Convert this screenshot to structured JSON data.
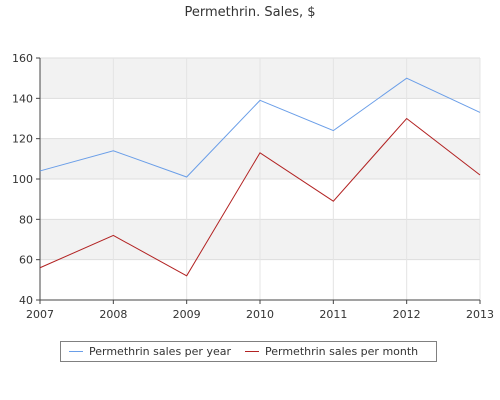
{
  "chart_data": {
    "type": "line",
    "title": "Permethrin. Sales, $",
    "xlabel": "",
    "ylabel": "",
    "categories": [
      "2007",
      "2008",
      "2009",
      "2010",
      "2011",
      "2012",
      "2013"
    ],
    "ylim": [
      40,
      160
    ],
    "yticks": [
      "40",
      "60",
      "80",
      "100",
      "120",
      "140",
      "160"
    ],
    "grid": true,
    "legend_position": "bottom",
    "series": [
      {
        "name": "Permethrin sales per year",
        "color": "#6a9ee8",
        "values": [
          104,
          114,
          101,
          139,
          124,
          150,
          133
        ]
      },
      {
        "name": "Permethrin sales per month",
        "color": "#b22222",
        "values": [
          56,
          72,
          52,
          113,
          89,
          130,
          102
        ]
      }
    ]
  }
}
